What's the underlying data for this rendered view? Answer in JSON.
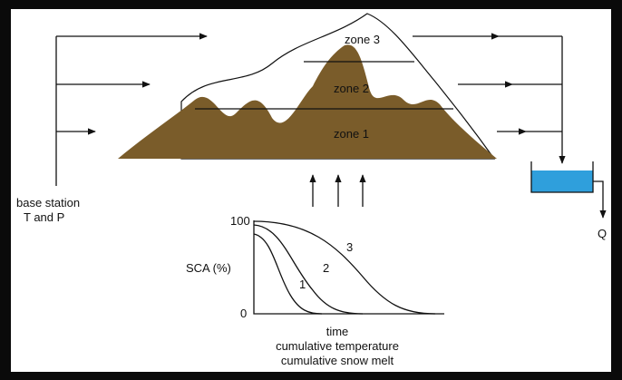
{
  "zones": [
    "zone 3",
    "zone 2",
    "zone 1"
  ],
  "station": {
    "line1": "base station",
    "line2": "T and P"
  },
  "outflow": "Q",
  "graph": {
    "y_label": "SCA (%)",
    "y_top": "100",
    "y_bottom": "0",
    "curves": [
      "1",
      "2",
      "3"
    ],
    "x_labels": [
      "time",
      "cumulative temperature",
      "cumulative snow melt"
    ]
  }
}
